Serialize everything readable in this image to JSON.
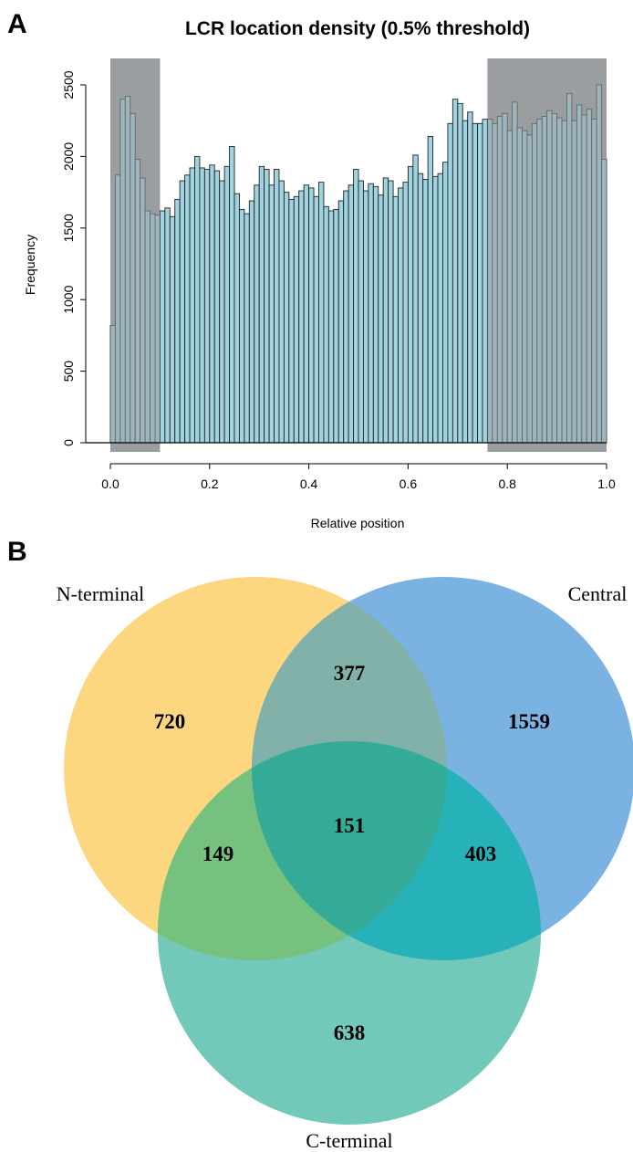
{
  "panels": {
    "a_label": "A",
    "b_label": "B"
  },
  "chart_data": {
    "type": "bar",
    "subtype": "histogram",
    "title": "LCR location density (0.5% threshold)",
    "xlabel": "Relative position",
    "ylabel": "Frequency",
    "xlim": [
      0,
      1
    ],
    "ylim": [
      0,
      2500
    ],
    "x_ticks": [
      "0.0",
      "0.2",
      "0.4",
      "0.6",
      "0.8",
      "1.0"
    ],
    "y_ticks": [
      "0",
      "500",
      "1000",
      "1500",
      "2000",
      "2500"
    ],
    "bin_width": 0.01,
    "bar_color": "#9fd3e0",
    "shaded_color": "#9a9ea0",
    "shaded_regions": [
      [
        0,
        0.1
      ],
      [
        0.76,
        1.0
      ]
    ],
    "values": [
      820,
      1870,
      2400,
      2420,
      2300,
      1980,
      1850,
      1620,
      1600,
      1590,
      1620,
      1640,
      1580,
      1700,
      1830,
      1870,
      1920,
      2000,
      1920,
      1910,
      1940,
      1900,
      1830,
      1930,
      2070,
      1740,
      1630,
      1600,
      1690,
      1800,
      1930,
      1910,
      1800,
      1910,
      1830,
      1750,
      1700,
      1720,
      1760,
      1800,
      1780,
      1720,
      1820,
      1650,
      1620,
      1630,
      1690,
      1760,
      1800,
      1910,
      1830,
      1760,
      1810,
      1790,
      1730,
      1850,
      1830,
      1720,
      1780,
      1820,
      1930,
      2010,
      1880,
      1840,
      2140,
      1860,
      1880,
      1960,
      2230,
      2400,
      2370,
      2250,
      2310,
      2230,
      2230,
      2260,
      2260,
      2230,
      2280,
      2300,
      2180,
      2380,
      2200,
      2180,
      2150,
      2230,
      2260,
      2280,
      2320,
      2300,
      2270,
      2250,
      2440,
      2250,
      2360,
      2290,
      2330,
      2260,
      2500,
      1980
    ]
  },
  "venn": {
    "sets": [
      {
        "name": "N-terminal",
        "color": "#fdd780"
      },
      {
        "name": "Central",
        "color": "#7ab3e1"
      },
      {
        "name": "C-terminal",
        "color": "#72c8b9"
      }
    ],
    "counts": {
      "n_only": "720",
      "central_only": "1559",
      "c_only": "638",
      "n_central": "377",
      "n_c": "149",
      "central_c": "403",
      "all": "151"
    },
    "colors": {
      "n_central": "#82b1aa",
      "n_c": "#77c17f",
      "central_c": "#27b1b9",
      "all": "#33ab96"
    }
  }
}
